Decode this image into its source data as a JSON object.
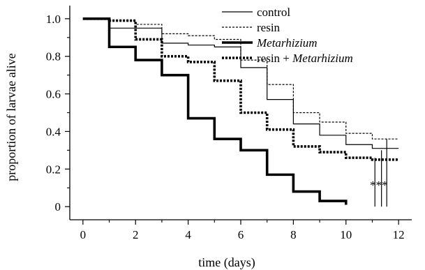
{
  "chart_data": {
    "type": "line",
    "xlabel": "time (days)",
    "ylabel": "proportion of larvae alive",
    "xlim": [
      -0.5,
      12.5
    ],
    "ylim": [
      -0.07,
      1.07
    ],
    "x_ticks": [
      0,
      2,
      4,
      6,
      8,
      10,
      12
    ],
    "x_tick_labels": [
      "0",
      "2",
      "4",
      "6",
      "8",
      "10",
      "12"
    ],
    "y_ticks": [
      0,
      0.2,
      0.4,
      0.6,
      0.8,
      1.0
    ],
    "y_tick_labels": [
      "0",
      "0.2",
      "0.4",
      "0.6",
      "0.8",
      "1.0"
    ],
    "grid": false,
    "legend_position": "top-right",
    "series": [
      {
        "name": "control",
        "style": "thin-solid",
        "color": "#000000",
        "x": [
          0,
          1,
          3,
          4,
          5,
          6,
          7,
          8,
          9,
          10,
          11
        ],
        "y": [
          1.0,
          0.95,
          0.87,
          0.86,
          0.85,
          0.74,
          0.57,
          0.44,
          0.38,
          0.33,
          0.31
        ]
      },
      {
        "name": "resin",
        "style": "thin-dashed",
        "color": "#000000",
        "x": [
          0,
          1,
          2,
          3,
          4,
          5,
          6,
          7,
          8,
          9,
          10,
          11
        ],
        "y": [
          1.0,
          0.99,
          0.97,
          0.92,
          0.91,
          0.89,
          0.78,
          0.65,
          0.5,
          0.45,
          0.39,
          0.36
        ]
      },
      {
        "name": "Metarhizium",
        "style": "thick-solid",
        "color": "#000000",
        "x": [
          0,
          1,
          2,
          3,
          4,
          5,
          6,
          7,
          8,
          9,
          10
        ],
        "y": [
          1.0,
          0.85,
          0.78,
          0.7,
          0.47,
          0.36,
          0.3,
          0.17,
          0.08,
          0.03,
          0.01
        ]
      },
      {
        "name": "resin + Metarhizium",
        "style": "thick-dashed",
        "color": "#000000",
        "x": [
          0,
          1,
          2,
          3,
          4,
          5,
          6,
          7,
          8,
          9,
          10,
          11
        ],
        "y": [
          1.0,
          0.99,
          0.89,
          0.8,
          0.77,
          0.67,
          0.5,
          0.41,
          0.32,
          0.29,
          0.26,
          0.25
        ]
      }
    ],
    "legend": [
      {
        "prefix": "control",
        "italic": ""
      },
      {
        "prefix": "resin",
        "italic": ""
      },
      {
        "prefix": "",
        "italic": "Metarhizium"
      },
      {
        "prefix": "resin + ",
        "italic": "Metarhizium"
      }
    ],
    "annotation": "***"
  }
}
